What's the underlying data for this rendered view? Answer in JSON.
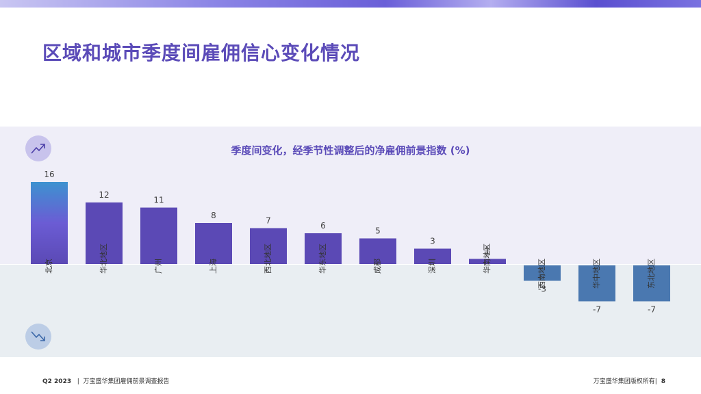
{
  "slide": {
    "title": "区域和城市季度间雇佣信心变化情况",
    "footer_left_quarter": "Q2 2023",
    "footer_left_sep": "|",
    "footer_left_text": "万宝盛华集团雇佣前景调查报告",
    "footer_right_text": "万宝盛华集团版权所有|",
    "page_number": "8"
  },
  "icons": {
    "up": "trend-up-icon",
    "down": "trend-down-icon"
  },
  "chart_data": {
    "type": "bar",
    "title": "季度间变化，经季节性调整后的净雇佣前景指数 (%)",
    "categories": [
      "北京",
      "华北地区",
      "广州",
      "上海",
      "西北地区",
      "华东地区",
      "成都",
      "深圳",
      "华南地区",
      "西南地区",
      "华中地区",
      "东北地区"
    ],
    "values": [
      16,
      12,
      11,
      8,
      7,
      6,
      5,
      3,
      1,
      -3,
      -7,
      -7
    ],
    "ylim": [
      -7,
      16
    ],
    "colors": {
      "positive": "#5b49b5",
      "negative": "#4a78b0",
      "highlight_top": "#3d92d0",
      "highlight_bottom": "#5b49b5"
    }
  }
}
